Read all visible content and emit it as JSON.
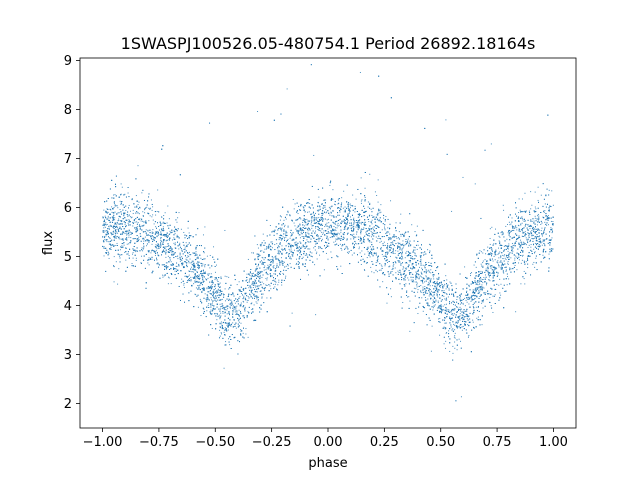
{
  "chart_data": {
    "type": "scatter",
    "title": "1SWASPJ100526.05-480754.1 Period 26892.18164s",
    "xlabel": "phase",
    "ylabel": "flux",
    "xlim": [
      -1.1,
      1.1
    ],
    "ylim": [
      1.5,
      9.05
    ],
    "xticks": [
      -1.0,
      -0.75,
      -0.5,
      -0.25,
      0.0,
      0.25,
      0.5,
      0.75,
      1.0
    ],
    "xtick_labels": [
      "−1.00",
      "−0.75",
      "−0.50",
      "−0.25",
      "0.00",
      "0.25",
      "0.50",
      "0.75",
      "1.00"
    ],
    "yticks": [
      2,
      3,
      4,
      5,
      6,
      7,
      8,
      9
    ],
    "ytick_labels": [
      "2",
      "3",
      "4",
      "5",
      "6",
      "7",
      "8",
      "9"
    ],
    "grid": false,
    "point_color": "#1f77b4",
    "series": [
      {
        "name": "",
        "description_note": "dense scatter of folded light curve, ~9000 points",
        "trend_x": [
          -1.0,
          -0.9,
          -0.8,
          -0.7,
          -0.6,
          -0.5,
          -0.45,
          -0.4,
          -0.3,
          -0.2,
          -0.1,
          0.0,
          0.1,
          0.2,
          0.3,
          0.4,
          0.5,
          0.55,
          0.6,
          0.7,
          0.8,
          0.9,
          1.0
        ],
        "trend_y": [
          5.6,
          5.6,
          5.45,
          5.2,
          4.8,
          4.2,
          3.75,
          3.85,
          4.6,
          5.15,
          5.45,
          5.65,
          5.6,
          5.4,
          5.1,
          4.75,
          4.2,
          3.75,
          3.85,
          4.6,
          5.15,
          5.45,
          5.6
        ],
        "spread": 0.35
      }
    ]
  }
}
